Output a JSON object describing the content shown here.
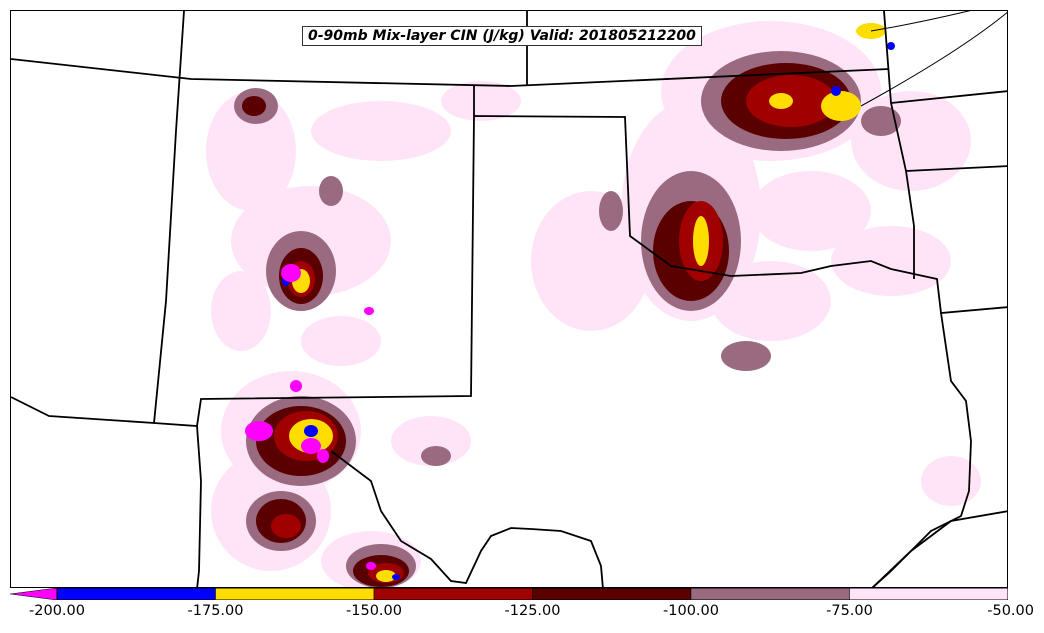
{
  "title": "0-90mb Mix-layer CIN (J/kg) Valid: 201805212200",
  "colorbar": {
    "extend": "min",
    "bins": [
      {
        "from": -200,
        "to": -175,
        "color": "#0000ff"
      },
      {
        "from": -175,
        "to": -150,
        "color": "#ffdd00"
      },
      {
        "from": -150,
        "to": -125,
        "color": "#a00000"
      },
      {
        "from": -125,
        "to": -100,
        "color": "#5a0000"
      },
      {
        "from": -100,
        "to": -75,
        "color": "#9a6a80"
      },
      {
        "from": -75,
        "to": -50,
        "color": "#ffe4f7"
      }
    ],
    "under_color": "#ff00ff",
    "tick_labels": [
      "-200.00",
      "-175.00",
      "-150.00",
      "-125.00",
      "-100.00",
      "-75.00",
      "-50.00"
    ]
  },
  "map": {
    "background": "#ffffff",
    "boundary_color": "#000000"
  }
}
